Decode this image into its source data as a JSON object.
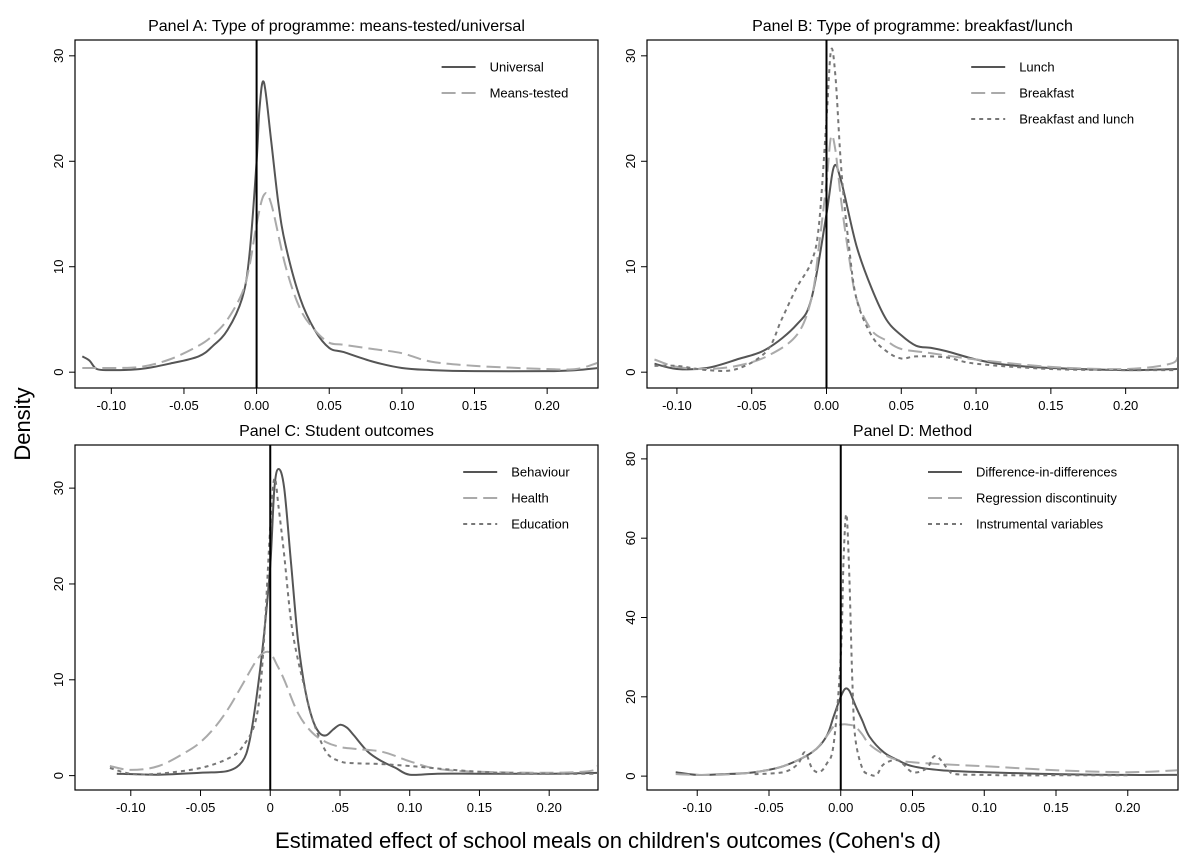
{
  "figure": {
    "ylabel": "Density",
    "xlabel": "Estimated effect of school meals on children's outcomes (Cohen's d)"
  },
  "chart_data": [
    {
      "type": "line",
      "title": "Panel A: Type of programme: means-tested/universal",
      "xlim": [
        -0.125,
        0.235
      ],
      "ylim": [
        -1.5,
        31.5
      ],
      "xticks": [
        -0.1,
        -0.05,
        0.0,
        0.05,
        0.1,
        0.15,
        0.2
      ],
      "xtick_labels": [
        "-0.10",
        "-0.05",
        "0.00",
        "0.05",
        "0.10",
        "0.15",
        "0.20"
      ],
      "yticks": [
        0,
        10,
        20,
        30
      ],
      "ytick_labels": [
        "0",
        "10",
        "20",
        "30"
      ],
      "vline_x": 0,
      "legend_position": "top-right",
      "series": [
        {
          "name": "Universal",
          "style": "solid",
          "color": "#555555",
          "x": [
            -0.12,
            -0.115,
            -0.11,
            -0.1,
            -0.08,
            -0.06,
            -0.04,
            -0.03,
            -0.02,
            -0.01,
            -0.005,
            0,
            0.002,
            0.005,
            0.01,
            0.015,
            0.02,
            0.03,
            0.04,
            0.05,
            0.06,
            0.08,
            0.1,
            0.12,
            0.15,
            0.2,
            0.22,
            0.235
          ],
          "y": [
            1.5,
            1.1,
            0.3,
            0.2,
            0.3,
            0.8,
            1.5,
            2.5,
            4,
            7,
            11,
            20,
            25,
            27.5,
            22,
            16,
            12,
            7,
            4,
            2.3,
            1.9,
            1.0,
            0.4,
            0.2,
            0.1,
            0.1,
            0.2,
            0.4
          ]
        },
        {
          "name": "Means-tested",
          "style": "dash",
          "color": "#aaaaaa",
          "x": [
            -0.12,
            -0.1,
            -0.08,
            -0.06,
            -0.04,
            -0.03,
            -0.02,
            -0.01,
            -0.005,
            0,
            0.005,
            0.01,
            0.02,
            0.03,
            0.04,
            0.05,
            0.06,
            0.08,
            0.1,
            0.12,
            0.15,
            0.18,
            0.2,
            0.22,
            0.235
          ],
          "y": [
            0.4,
            0.4,
            0.5,
            1.2,
            2.5,
            3.5,
            5,
            7.5,
            10,
            14,
            16.8,
            16,
            10,
            6,
            4,
            2.8,
            2.6,
            2.2,
            1.8,
            1.0,
            0.6,
            0.4,
            0.3,
            0.3,
            0.9
          ]
        }
      ]
    },
    {
      "type": "line",
      "title": "Panel B: Type of programme: breakfast/lunch",
      "xlim": [
        -0.12,
        0.235
      ],
      "ylim": [
        -1.5,
        31.5
      ],
      "xticks": [
        -0.1,
        -0.05,
        0.0,
        0.05,
        0.1,
        0.15,
        0.2
      ],
      "xtick_labels": [
        "-0.10",
        "-0.05",
        "0.00",
        "0.05",
        "0.10",
        "0.15",
        "0.20"
      ],
      "yticks": [
        0,
        10,
        20,
        30
      ],
      "ytick_labels": [
        "0",
        "10",
        "20",
        "30"
      ],
      "vline_x": 0,
      "legend_position": "top-right",
      "series": [
        {
          "name": "Lunch",
          "style": "solid",
          "color": "#555555",
          "x": [
            -0.115,
            -0.1,
            -0.08,
            -0.06,
            -0.04,
            -0.02,
            -0.01,
            0,
            0.005,
            0.01,
            0.02,
            0.03,
            0.04,
            0.05,
            0.06,
            0.07,
            0.08,
            0.1,
            0.12,
            0.15,
            0.2,
            0.235
          ],
          "y": [
            0.8,
            0.3,
            0.4,
            1.2,
            2.2,
            4.5,
            7,
            15,
            19.5,
            18,
            12,
            8,
            5,
            3.5,
            2.5,
            2.3,
            2,
            1.2,
            0.7,
            0.4,
            0.2,
            0.3
          ]
        },
        {
          "name": "Breakfast",
          "style": "dash",
          "color": "#aaaaaa",
          "x": [
            -0.115,
            -0.1,
            -0.08,
            -0.06,
            -0.04,
            -0.02,
            -0.01,
            -0.005,
            0,
            0.003,
            0.006,
            0.01,
            0.015,
            0.02,
            0.03,
            0.04,
            0.05,
            0.07,
            0.1,
            0.15,
            0.2,
            0.23,
            0.235
          ],
          "y": [
            1.2,
            0.5,
            0.3,
            0.6,
            1.5,
            3.5,
            7,
            12,
            18,
            22.3,
            21,
            16,
            11,
            7,
            4,
            3,
            2.2,
            1.8,
            1.2,
            0.5,
            0.3,
            0.8,
            1.6
          ]
        },
        {
          "name": "Breakfast and lunch",
          "style": "dot",
          "color": "#777777",
          "x": [
            -0.115,
            -0.1,
            -0.08,
            -0.06,
            -0.04,
            -0.03,
            -0.02,
            -0.01,
            -0.005,
            0,
            0.003,
            0.006,
            0.01,
            0.015,
            0.02,
            0.03,
            0.04,
            0.05,
            0.06,
            0.08,
            0.1,
            0.15,
            0.2,
            0.235
          ],
          "y": [
            0.6,
            0.6,
            0.2,
            0.3,
            2,
            5,
            8,
            10.5,
            14,
            24,
            30.5,
            28,
            19,
            12,
            7,
            3.5,
            2,
            1.3,
            1.5,
            1.4,
            0.8,
            0.3,
            0.2,
            0.2
          ]
        }
      ]
    },
    {
      "type": "line",
      "title": "Panel C: Student outcomes",
      "xlim": [
        -0.14,
        0.235
      ],
      "ylim": [
        -1.5,
        34.5
      ],
      "xticks": [
        -0.1,
        -0.05,
        0.0,
        0.05,
        0.1,
        0.15,
        0.2
      ],
      "xtick_labels": [
        "-0.10",
        "-0.05",
        "0",
        ".05",
        "0.10",
        "0.15",
        "0.20"
      ],
      "yticks": [
        0,
        10,
        20,
        30
      ],
      "ytick_labels": [
        "0",
        "10",
        "20",
        "30"
      ],
      "vline_x": 0,
      "legend_position": "top-right",
      "series": [
        {
          "name": "Behaviour",
          "style": "solid",
          "color": "#555555",
          "x": [
            -0.11,
            -0.08,
            -0.05,
            -0.03,
            -0.02,
            -0.015,
            -0.01,
            -0.005,
            0,
            0.003,
            0.006,
            0.01,
            0.015,
            0.02,
            0.025,
            0.03,
            0.035,
            0.04,
            0.045,
            0.05,
            0.055,
            0.06,
            0.07,
            0.08,
            0.09,
            0.1,
            0.12,
            0.15,
            0.2,
            0.235
          ],
          "y": [
            0.2,
            0.1,
            0.3,
            0.5,
            1.5,
            3.5,
            8,
            14,
            22,
            30,
            32,
            30,
            22,
            14,
            9,
            6,
            4.5,
            4.2,
            4.8,
            5.3,
            5.0,
            4.2,
            2.5,
            1.5,
            0.8,
            0.1,
            0.2,
            0.2,
            0.2,
            0.3
          ]
        },
        {
          "name": "Health",
          "style": "dash",
          "color": "#aaaaaa",
          "x": [
            -0.115,
            -0.1,
            -0.08,
            -0.06,
            -0.05,
            -0.04,
            -0.03,
            -0.02,
            -0.01,
            -0.005,
            0,
            0.005,
            0.01,
            0.02,
            0.03,
            0.04,
            0.05,
            0.06,
            0.08,
            0.1,
            0.12,
            0.15,
            0.2,
            0.23,
            0.235
          ],
          "y": [
            1.0,
            0.6,
            1.0,
            2.5,
            3.5,
            5,
            7,
            9.5,
            12,
            12.8,
            12.8,
            11.5,
            10,
            6.5,
            4.5,
            3.5,
            3.0,
            2.8,
            2.5,
            1.5,
            0.7,
            0.4,
            0.3,
            0.5,
            1.1
          ]
        },
        {
          "name": "Education",
          "style": "dot",
          "color": "#777777",
          "x": [
            -0.115,
            -0.1,
            -0.08,
            -0.05,
            -0.03,
            -0.02,
            -0.01,
            -0.005,
            0,
            0.003,
            0.006,
            0.01,
            0.015,
            0.02,
            0.025,
            0.03,
            0.04,
            0.05,
            0.06,
            0.08,
            0.1,
            0.15,
            0.2,
            0.235
          ],
          "y": [
            0.8,
            0.2,
            0.2,
            0.8,
            1.8,
            3,
            6,
            13,
            26,
            31,
            28,
            23,
            16,
            12,
            9,
            6,
            2.5,
            1.5,
            1.3,
            1.2,
            1.0,
            0.4,
            0.2,
            0.2
          ]
        }
      ]
    },
    {
      "type": "line",
      "title": "Panel D: Method",
      "xlim": [
        -0.135,
        0.235
      ],
      "ylim": [
        -3.5,
        83.5
      ],
      "xticks": [
        -0.1,
        -0.05,
        0.0,
        0.05,
        0.1,
        0.15,
        0.2
      ],
      "xtick_labels": [
        "-0.10",
        "-0.05",
        "0.00",
        "0.05",
        "0.10",
        "0.15",
        "0.20"
      ],
      "yticks": [
        0,
        20,
        40,
        60,
        80
      ],
      "ytick_labels": [
        "0",
        "20",
        "40",
        "60",
        "80"
      ],
      "vline_x": 0,
      "legend_position": "top-right",
      "series": [
        {
          "name": "Difference-in-differences",
          "style": "solid",
          "color": "#555555",
          "x": [
            -0.115,
            -0.1,
            -0.08,
            -0.06,
            -0.04,
            -0.02,
            -0.01,
            -0.005,
            0,
            0.003,
            0.006,
            0.01,
            0.015,
            0.02,
            0.03,
            0.04,
            0.05,
            0.07,
            0.1,
            0.15,
            0.2,
            0.235
          ],
          "y": [
            1,
            0.3,
            0.5,
            1,
            2.5,
            6,
            10,
            15,
            20,
            22,
            21.5,
            18,
            14,
            10,
            6,
            4,
            2.5,
            1.5,
            1,
            0.5,
            0.3,
            0.3
          ]
        },
        {
          "name": "Regression discontinuity",
          "style": "dash",
          "color": "#aaaaaa",
          "x": [
            -0.115,
            -0.1,
            -0.08,
            -0.06,
            -0.04,
            -0.02,
            -0.01,
            -0.005,
            0,
            0.005,
            0.01,
            0.015,
            0.02,
            0.03,
            0.04,
            0.05,
            0.07,
            0.1,
            0.15,
            0.2,
            0.235
          ],
          "y": [
            0.5,
            0.3,
            0.4,
            1.0,
            2.5,
            6,
            10,
            12.5,
            13,
            13,
            12.5,
            10.5,
            8,
            5.5,
            4,
            3.5,
            3,
            2.5,
            1.5,
            1,
            1.5
          ]
        },
        {
          "name": "Instrumental variables",
          "style": "dot",
          "color": "#777777",
          "x": [
            -0.06,
            -0.04,
            -0.03,
            -0.025,
            -0.02,
            -0.015,
            -0.01,
            -0.005,
            0,
            0.002,
            0.004,
            0.006,
            0.008,
            0.01,
            0.015,
            0.02,
            0.025,
            0.03,
            0.04,
            0.05,
            0.06,
            0.065,
            0.07,
            0.075,
            0.08,
            0.1,
            0.12,
            0.15,
            0.2
          ],
          "y": [
            0.5,
            1,
            3,
            6,
            2,
            1,
            3,
            8,
            30,
            55,
            66,
            50,
            25,
            10,
            2,
            0.5,
            0.3,
            3,
            4,
            1,
            2,
            5,
            4,
            1.5,
            0.5,
            0.3,
            0.2,
            0.2,
            0.2
          ]
        }
      ]
    }
  ]
}
